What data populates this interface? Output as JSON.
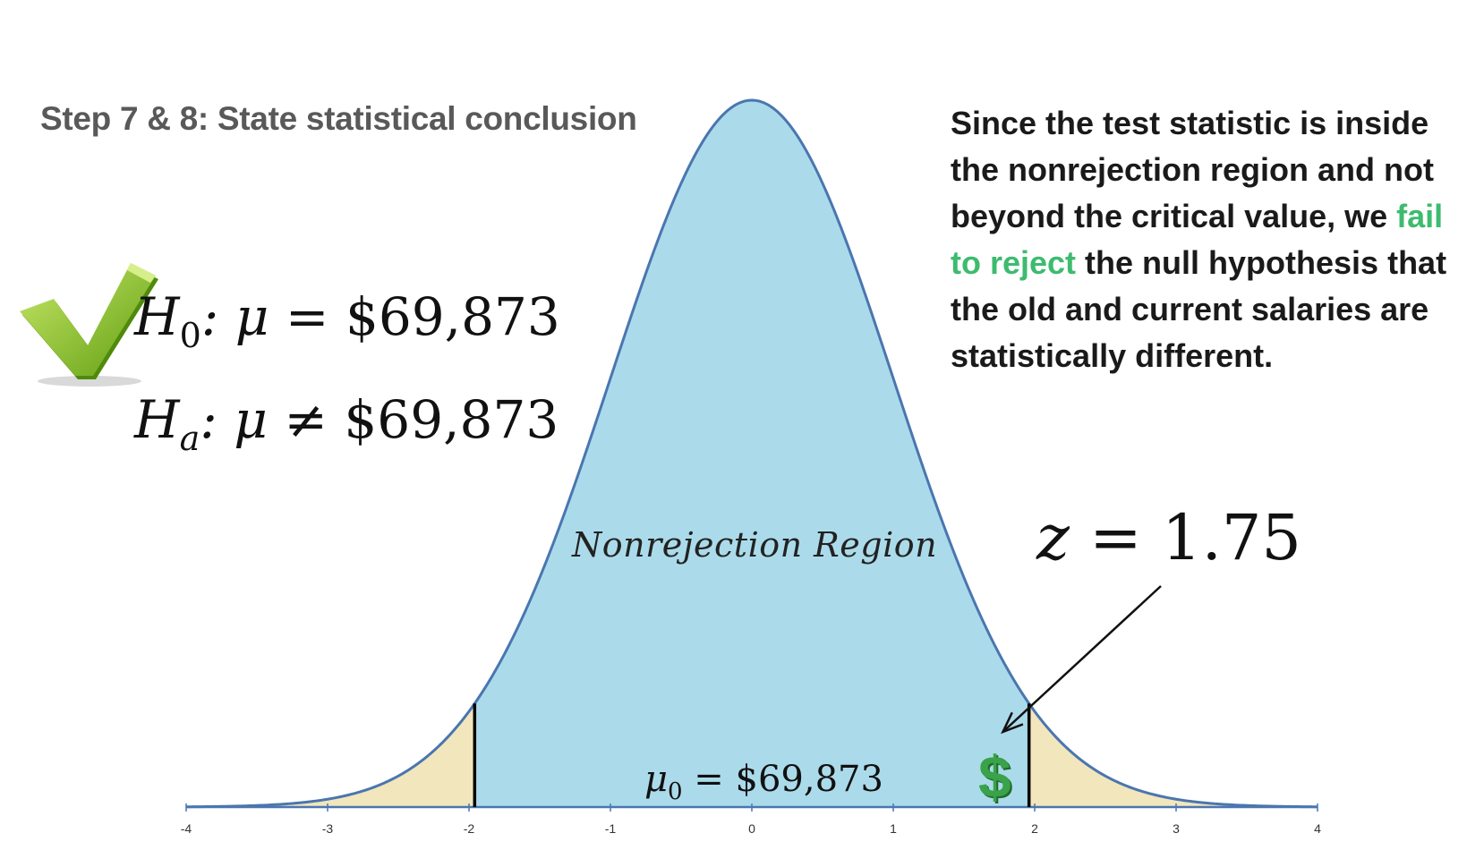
{
  "title": "Step 7 & 8: State statistical conclusion",
  "hypotheses": {
    "null": {
      "symbol": "H",
      "subscript": "0",
      "relation": ": μ = ",
      "value": "$69,873"
    },
    "alternative": {
      "symbol": "H",
      "subscript": "a",
      "relation": ": μ ≠ ",
      "value": "$69,873"
    }
  },
  "conclusion": {
    "before": "Since the test statistic is inside the nonrejection region and not beyond the critical value, we ",
    "highlight": "fail to reject",
    "after": " the null hypothesis that the old and current salaries are statistically different.",
    "highlight_color": "#3dbb6f"
  },
  "test_statistic": {
    "symbol": "z",
    "relation": " = ",
    "value": "1.75"
  },
  "icons": {
    "check": "checkmark-icon",
    "dollar": "dollar-sign-icon",
    "dollar_text": "$"
  },
  "chart_data": {
    "type": "area",
    "distribution": "standard normal",
    "xlim": [
      -4,
      4
    ],
    "x_ticks": [
      "-4",
      "-3",
      "-2",
      "-1",
      "0",
      "1",
      "2",
      "3",
      "4"
    ],
    "critical_values": [
      -1.96,
      1.96
    ],
    "test_statistic": 1.75,
    "region_label": "Nonrejection Region",
    "mean_label": {
      "symbol": "μ",
      "subscript": "0",
      "relation": " = ",
      "value": "$69,873"
    },
    "colors": {
      "nonrejection_fill": "#abdbea",
      "rejection_fill": "#f2e6bd",
      "curve": "#4a76b0",
      "critical_line": "#000000"
    }
  }
}
